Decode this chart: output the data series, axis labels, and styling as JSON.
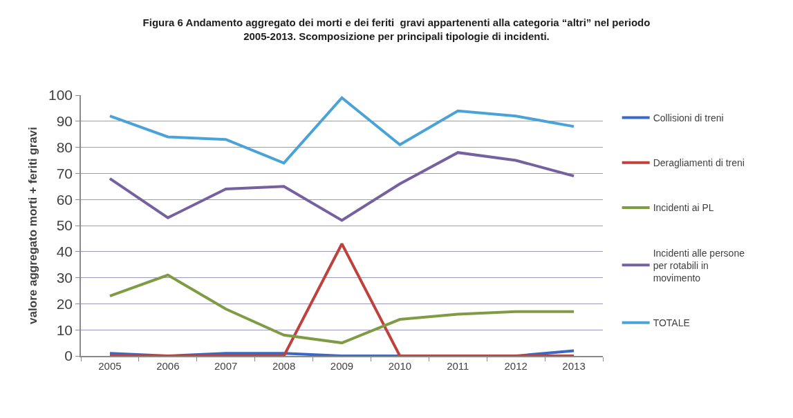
{
  "chart_data": {
    "type": "line",
    "title": "Figura 6 Andamento aggregato dei morti e dei feriti  gravi appartenenti alla categoria “altri” nel periodo\n2005-2013. Scomposizione per principali tipologie di incidenti.",
    "ylabel": "valore aggregato morti + feriti gravi",
    "categories": [
      "2005",
      "2006",
      "2007",
      "2008",
      "2009",
      "2010",
      "2011",
      "2012",
      "2013"
    ],
    "series": [
      {
        "name": "Collisioni di treni",
        "color": "#3a68c4",
        "values": [
          1,
          0,
          1,
          1,
          0,
          0,
          0,
          0,
          2
        ]
      },
      {
        "name": "Deragliamenti di treni",
        "color": "#c0413b",
        "values": [
          0,
          0,
          0,
          0,
          43,
          0,
          0,
          0,
          0
        ]
      },
      {
        "name": "Incidenti ai PL",
        "color": "#7f9c45",
        "values": [
          23,
          31,
          18,
          8,
          5,
          14,
          16,
          17,
          17
        ]
      },
      {
        "name": "Incidenti alle persone per rotabili in movimento",
        "color": "#7560a0",
        "values": [
          68,
          53,
          64,
          65,
          52,
          66,
          78,
          75,
          69
        ]
      },
      {
        "name": "TOTALE",
        "color": "#4aa3d8",
        "values": [
          92,
          84,
          83,
          74,
          99,
          81,
          94,
          92,
          88
        ]
      }
    ],
    "ylim": [
      0,
      100
    ],
    "yticks": [
      0,
      10,
      20,
      30,
      40,
      50,
      60,
      70,
      80,
      90,
      100
    ],
    "grid": "y",
    "legend": "right",
    "marker": "none",
    "line_style": "solid"
  }
}
